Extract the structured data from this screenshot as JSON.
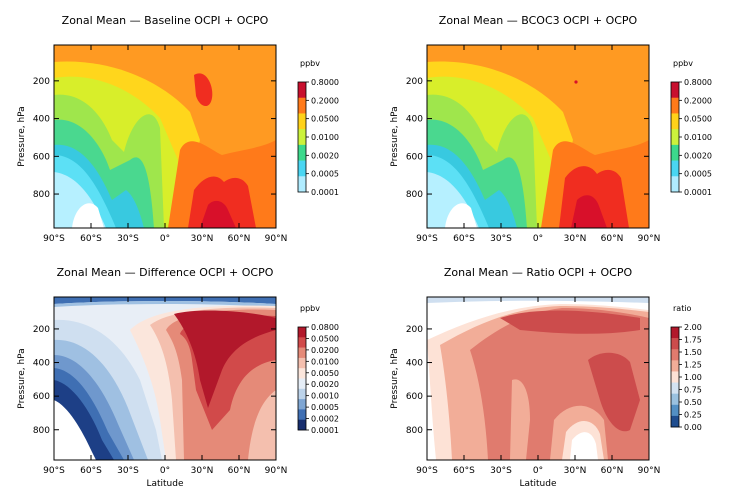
{
  "chart_data": [
    {
      "type": "heatmap",
      "title": "Zonal Mean — Baseline OCPI + OCPO",
      "ylabel": "Pressure, hPa",
      "xlabel": "",
      "x_ticks": [
        "90°S",
        "60°S",
        "30°S",
        "0°",
        "30°N",
        "60°N",
        "90°N"
      ],
      "y_ticks": [
        "200",
        "400",
        "600",
        "800"
      ],
      "xlim": [
        -90,
        90
      ],
      "ylim": [
        980,
        10
      ],
      "colorbar_label": "ppbv",
      "colorbar_ticks": [
        "0.8000",
        "0.2000",
        "0.0500",
        "0.0100",
        "0.0020",
        "0.0005",
        "0.0001"
      ],
      "colorbar_colors": [
        "#c8102e",
        "#ff7a1a",
        "#ffd21a",
        "#ccf23c",
        "#3cd98c",
        "#4ad6f2",
        "#b0ecff"
      ]
    },
    {
      "type": "heatmap",
      "title": "Zonal Mean — BCOC3 OCPI + OCPO",
      "ylabel": "Pressure, hPa",
      "xlabel": "",
      "x_ticks": [
        "90°S",
        "60°S",
        "30°S",
        "0°",
        "30°N",
        "60°N",
        "90°N"
      ],
      "y_ticks": [
        "200",
        "400",
        "600",
        "800"
      ],
      "xlim": [
        -90,
        90
      ],
      "ylim": [
        980,
        10
      ],
      "colorbar_label": "ppbv",
      "colorbar_ticks": [
        "0.8000",
        "0.2000",
        "0.0500",
        "0.0100",
        "0.0020",
        "0.0005",
        "0.0001"
      ],
      "colorbar_colors": [
        "#c8102e",
        "#ff7a1a",
        "#ffd21a",
        "#ccf23c",
        "#3cd98c",
        "#4ad6f2",
        "#b0ecff"
      ]
    },
    {
      "type": "heatmap",
      "title": "Zonal Mean — Difference OCPI + OCPO",
      "ylabel": "Pressure, hPa",
      "xlabel": "Latitude",
      "x_ticks": [
        "90°S",
        "60°S",
        "30°S",
        "0°",
        "30°N",
        "60°N",
        "90°N"
      ],
      "y_ticks": [
        "200",
        "400",
        "600",
        "800"
      ],
      "xlim": [
        -90,
        90
      ],
      "ylim": [
        980,
        10
      ],
      "colorbar_label": "ppbv",
      "colorbar_ticks": [
        "0.0800",
        "0.0500",
        "0.0200",
        "0.0100",
        "0.0050",
        "0.0020",
        "0.0010",
        "0.0005",
        "0.0002",
        "0.0001"
      ],
      "colorbar_colors": [
        "#b2182b",
        "#d14a4a",
        "#e58a78",
        "#f4bfae",
        "#fbe6dc",
        "#e6eef7",
        "#bcd3ea",
        "#7fa6d3",
        "#3f6fb3",
        "#172e6e"
      ]
    },
    {
      "type": "heatmap",
      "title": "Zonal Mean — Ratio OCPI + OCPO",
      "ylabel": "Pressure, hPa",
      "xlabel": "Latitude",
      "x_ticks": [
        "90°S",
        "60°S",
        "30°S",
        "0°",
        "30°N",
        "60°N",
        "90°N"
      ],
      "y_ticks": [
        "200",
        "400",
        "600",
        "800"
      ],
      "xlim": [
        -90,
        90
      ],
      "ylim": [
        980,
        10
      ],
      "colorbar_label": "ratio",
      "colorbar_ticks": [
        "2.00",
        "1.75",
        "1.50",
        "1.25",
        "1.00",
        "0.75",
        "0.50",
        "0.25",
        "0.00"
      ],
      "colorbar_colors": [
        "#b2182b",
        "#cc4c4c",
        "#e07b6e",
        "#f2ad98",
        "#fde2d6",
        "#d3e2f1",
        "#9ac1df",
        "#5390c4",
        "#1f4d8f"
      ]
    }
  ]
}
